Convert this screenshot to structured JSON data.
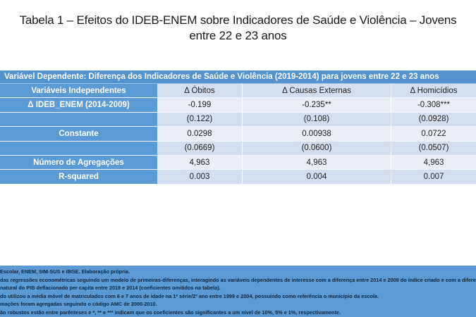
{
  "title": {
    "line1": "Tabela 1 – Efeitos do IDEB-ENEM sobre Indicadores de Saúde e Violência – Jovens",
    "line2": "entre 22 e 23 anos"
  },
  "table": {
    "caption": "Variável Dependente: Diferença dos Indicadores de Saúde e Violência (2019-2014) para jovens entre 22 e 23 anos",
    "headers": [
      "Variáveis Independentes",
      "Δ Óbitos",
      "Δ Causas Externas",
      "Δ Homicídios"
    ],
    "rows": [
      [
        "Δ IDEB_ENEM (2014-2009)",
        "-0.199",
        "-0.235**",
        "-0.308***"
      ],
      [
        "",
        "(0.122)",
        "(0.108)",
        "(0.0928)"
      ],
      [
        "Constante",
        "0.0298",
        "0.00938",
        "0.0722"
      ],
      [
        "",
        "(0.0669)",
        "(0.0600)",
        "(0.0507)"
      ],
      [
        "Número de Agregações",
        "4,963",
        "4,963",
        "4,963"
      ],
      [
        "R-squared",
        "0.003",
        "0.004",
        "0.007"
      ]
    ]
  },
  "notes": [
    "Escolar, ENEM, SIM-SUS e IBGE. Elaboração própria.",
    "das regressões econométricas seguindo um modelo de primeiras-diferenças, interagindo as variáveis dependentes de interesse com a diferença entre 2014 e 2009 do índice criado e com a diferença",
    "natural do PIB deflacionado per capita entre 2018 e 2014 (coeficientes omitidos na tabela).",
    "do utilizou a média móvel de matriculados com 6 e 7 anos de idade na 1ª série/2º ano entre 1999 e 2004, possuindo como referência o município da escola.",
    "mações foram agregadas seguindo o código AMC de 2000-2010.",
    "ão robustos estão entre parênteses e *, ** e *** indicam que os coeficientes são significantes a um nível de 10%, 5% e 1%, respectivamente."
  ],
  "colors": {
    "header_blue": "#5b9bd5",
    "caption_blue": "#5393cf",
    "band_dark": "#d3dfee",
    "band_light": "#eaeff7"
  }
}
